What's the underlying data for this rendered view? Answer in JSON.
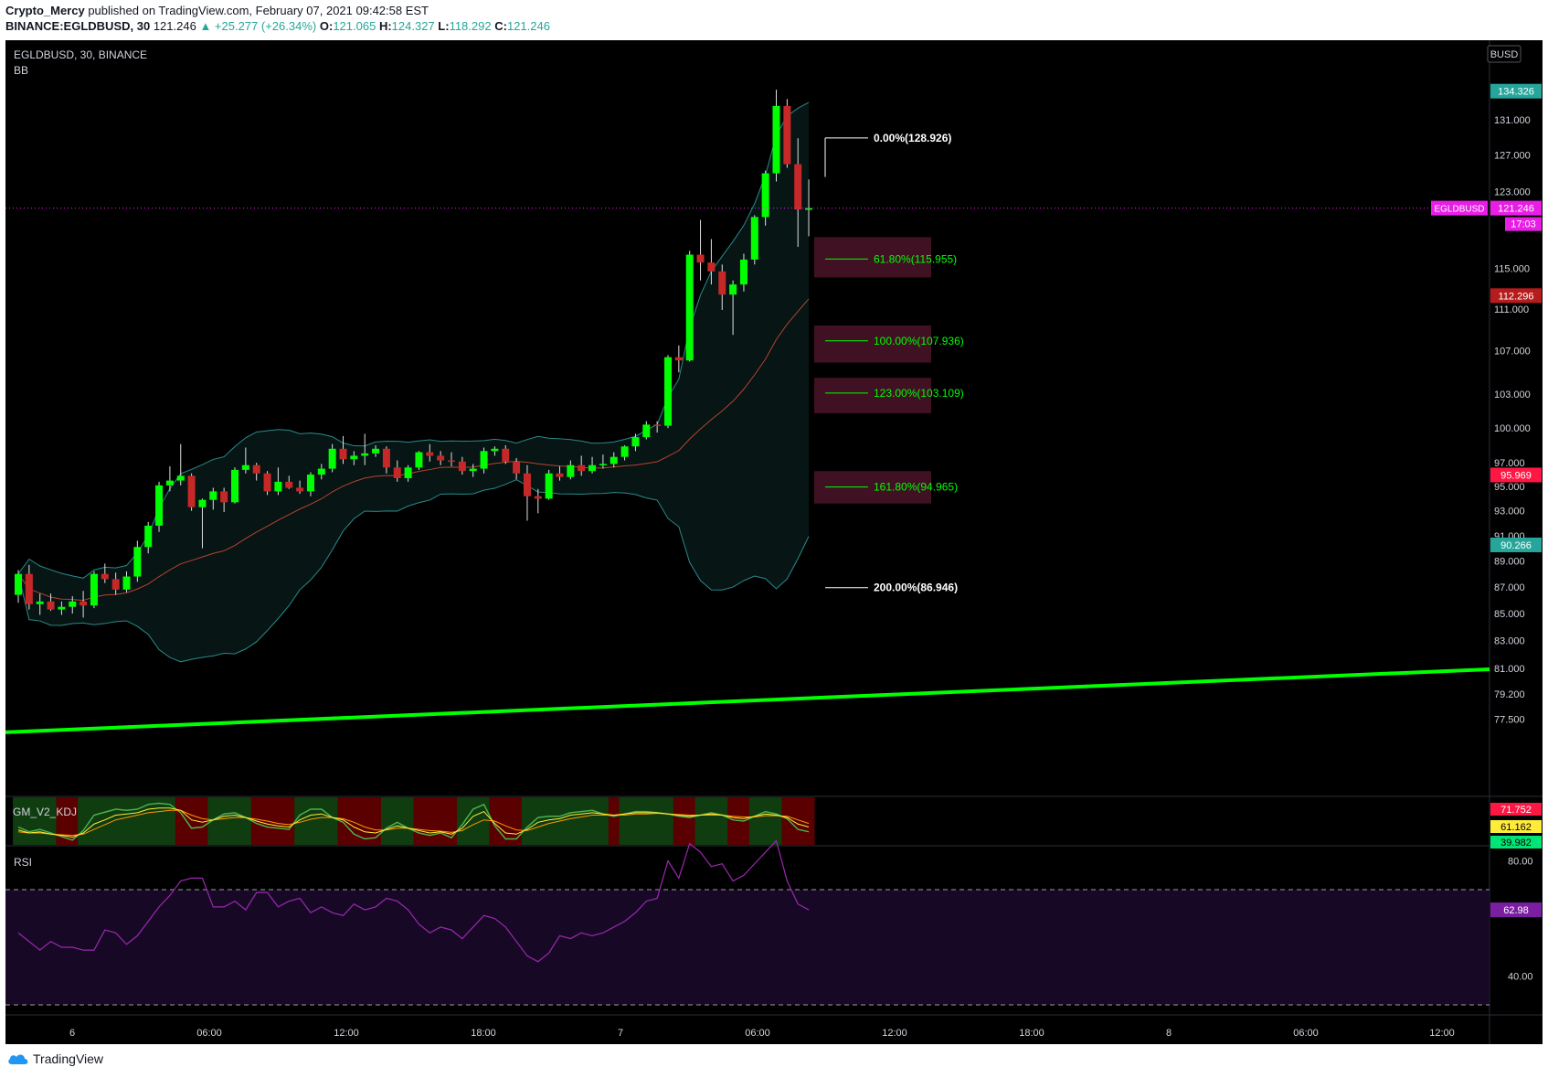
{
  "header": {
    "author": "Crypto_Mercy",
    "published_text": "published on TradingView.com, February 07, 2021 09:42:58 EST",
    "symbol_full": "BINANCE:EGLDBUSD, 30",
    "last": "121.246",
    "change": "▲ +25.277 (+26.34%)",
    "o_label": "O:",
    "o": "121.065",
    "h_label": "H:",
    "h": "124.327",
    "l_label": "L:",
    "l": "118.292",
    "c_label": "C:",
    "c": "121.246"
  },
  "legend": {
    "symbol": "EGLDBUSD, 30, BINANCE",
    "indicator": "BB",
    "kdj": "GM_V2_KDJ",
    "rsi": "RSI"
  },
  "currency_button": "BUSD",
  "footer": {
    "brand": "TradingView"
  },
  "colors": {
    "up": "#00ff00",
    "down": "#c62828",
    "bb_band": "#2a8a8a",
    "bb_basis": "#b5432f",
    "trend": "#00ff00",
    "rsi_line": "#9c27b0",
    "magenta": "#e91ee6",
    "axis_text": "#d1d4dc"
  },
  "chart_data": {
    "type": "candlestick",
    "symbol": "EGLDBUSD",
    "interval": "30",
    "price_axis": {
      "ticks": [
        "131.000",
        "127.000",
        "123.000",
        "115.000",
        "111.000",
        "107.000",
        "103.000",
        "100.000",
        "97.000",
        "95.000",
        "93.000",
        "91.000",
        "89.000",
        "87.000",
        "85.000",
        "83.000",
        "81.000",
        "79.200",
        "77.500"
      ],
      "scale": "log"
    },
    "time_axis": {
      "ticks": [
        "6",
        "06:00",
        "12:00",
        "18:00",
        "7",
        "06:00",
        "12:00",
        "18:00",
        "8",
        "06:00",
        "12:00"
      ]
    },
    "price_labels": [
      {
        "name": "bb_upper",
        "value": "134.326",
        "color": "#26a69a"
      },
      {
        "name": "last",
        "value": "121.246",
        "color": "#e91ee6",
        "symbol": "EGLDBUSD",
        "countdown": "17:03"
      },
      {
        "name": "bb_basis",
        "value": "112.296",
        "color": "#b71c1c"
      },
      {
        "name": "red_marker",
        "value": "95.969",
        "color": "#ff1744"
      },
      {
        "name": "bb_lower",
        "value": "90.266",
        "color": "#26a69a"
      }
    ],
    "fibonacci": [
      {
        "level": "0.00%",
        "price": "128.926"
      },
      {
        "level": "61.80%",
        "price": "115.955"
      },
      {
        "level": "100.00%",
        "price": "107.936"
      },
      {
        "level": "123.00%",
        "price": "103.109"
      },
      {
        "level": "161.80%",
        "price": "94.965"
      },
      {
        "level": "200.00%",
        "price": "86.946"
      }
    ],
    "candles": [
      [
        86.4,
        88.3,
        85.8,
        88.0
      ],
      [
        88.0,
        88.7,
        85.3,
        85.7
      ],
      [
        85.7,
        86.5,
        84.9,
        85.9
      ],
      [
        85.9,
        86.5,
        85.2,
        85.3
      ],
      [
        85.3,
        85.9,
        84.9,
        85.5
      ],
      [
        85.5,
        86.3,
        85.0,
        85.9
      ],
      [
        85.9,
        86.7,
        84.7,
        85.6
      ],
      [
        85.6,
        88.2,
        85.4,
        88.0
      ],
      [
        88.0,
        88.8,
        87.3,
        87.6
      ],
      [
        87.6,
        88.1,
        86.4,
        86.8
      ],
      [
        86.8,
        88.2,
        86.6,
        87.8
      ],
      [
        87.8,
        90.6,
        87.4,
        90.1
      ],
      [
        90.1,
        92.1,
        89.6,
        91.8
      ],
      [
        91.8,
        95.4,
        91.3,
        95.1
      ],
      [
        95.1,
        96.7,
        94.6,
        95.5
      ],
      [
        95.5,
        98.6,
        95.1,
        95.9
      ],
      [
        95.9,
        96.1,
        93.0,
        93.3
      ],
      [
        93.3,
        94.0,
        90.0,
        93.9
      ],
      [
        93.9,
        94.9,
        93.1,
        94.6
      ],
      [
        94.6,
        94.9,
        92.9,
        93.7
      ],
      [
        93.7,
        96.6,
        93.6,
        96.4
      ],
      [
        96.4,
        98.3,
        96.1,
        96.8
      ],
      [
        96.8,
        97.0,
        95.5,
        96.1
      ],
      [
        96.1,
        96.3,
        94.3,
        94.6
      ],
      [
        94.6,
        96.6,
        94.3,
        95.4
      ],
      [
        95.4,
        95.9,
        94.8,
        94.9
      ],
      [
        94.9,
        95.5,
        94.4,
        94.6
      ],
      [
        94.6,
        96.2,
        94.2,
        96.0
      ],
      [
        96.0,
        96.9,
        95.6,
        96.5
      ],
      [
        96.5,
        98.6,
        96.2,
        98.2
      ],
      [
        98.2,
        99.3,
        96.9,
        97.3
      ],
      [
        97.3,
        98.0,
        96.8,
        97.6
      ],
      [
        97.6,
        99.5,
        96.8,
        97.8
      ],
      [
        97.8,
        98.5,
        97.5,
        98.2
      ],
      [
        98.2,
        98.4,
        96.1,
        96.6
      ],
      [
        96.6,
        97.2,
        95.4,
        95.7
      ],
      [
        95.7,
        96.8,
        95.4,
        96.6
      ],
      [
        96.6,
        98.0,
        96.4,
        97.9
      ],
      [
        97.9,
        98.6,
        97.1,
        97.6
      ],
      [
        97.6,
        98.0,
        96.8,
        97.2
      ],
      [
        97.2,
        97.9,
        96.7,
        97.1
      ],
      [
        97.1,
        97.5,
        96.0,
        96.3
      ],
      [
        96.3,
        96.9,
        95.8,
        96.5
      ],
      [
        96.5,
        98.3,
        96.1,
        98.0
      ],
      [
        98.0,
        98.4,
        97.6,
        98.2
      ],
      [
        98.2,
        98.5,
        96.9,
        97.1
      ],
      [
        97.1,
        97.4,
        95.6,
        96.1
      ],
      [
        96.1,
        96.8,
        92.2,
        94.2
      ],
      [
        94.2,
        94.8,
        92.8,
        94.0
      ],
      [
        94.0,
        96.4,
        93.9,
        96.1
      ],
      [
        96.1,
        96.7,
        95.5,
        95.8
      ],
      [
        95.8,
        97.2,
        95.6,
        96.8
      ],
      [
        96.8,
        97.6,
        95.9,
        96.3
      ],
      [
        96.3,
        97.5,
        96.1,
        96.8
      ],
      [
        96.8,
        97.7,
        96.5,
        96.9
      ],
      [
        96.9,
        97.9,
        96.6,
        97.5
      ],
      [
        97.5,
        98.5,
        97.2,
        98.4
      ],
      [
        98.4,
        99.5,
        98.0,
        99.2
      ],
      [
        99.2,
        100.6,
        99.0,
        100.3
      ],
      [
        100.3,
        100.6,
        99.6,
        100.2
      ],
      [
        100.2,
        106.6,
        100.0,
        106.4
      ],
      [
        106.4,
        107.5,
        105.0,
        106.1
      ],
      [
        106.1,
        116.8,
        106.0,
        116.4
      ],
      [
        116.4,
        120.0,
        113.8,
        115.6
      ],
      [
        115.6,
        118.0,
        113.4,
        114.7
      ],
      [
        114.7,
        115.4,
        110.9,
        112.4
      ],
      [
        112.4,
        113.8,
        108.5,
        113.4
      ],
      [
        113.4,
        116.5,
        112.7,
        115.9
      ],
      [
        115.9,
        120.5,
        115.4,
        120.3
      ],
      [
        120.3,
        125.3,
        119.4,
        125.0
      ],
      [
        125.0,
        134.5,
        124.1,
        132.6
      ],
      [
        132.6,
        133.4,
        125.6,
        126.0
      ],
      [
        126.0,
        128.9,
        117.2,
        121.1
      ],
      [
        121.065,
        124.327,
        118.292,
        121.246
      ]
    ],
    "rsi": {
      "ticks": [
        "80.00",
        "40.00"
      ],
      "bands": [
        70,
        30
      ],
      "value": "62.98",
      "values": [
        55,
        52,
        49,
        52,
        50,
        50,
        49,
        49,
        56,
        55,
        51,
        54,
        59,
        64,
        68,
        73,
        74,
        74,
        64,
        64,
        66,
        63,
        69,
        69,
        64,
        66,
        67,
        62,
        64,
        62,
        61,
        65,
        63,
        64,
        67,
        66,
        63,
        58,
        55,
        57,
        56,
        53,
        57,
        61,
        60,
        57,
        52,
        47,
        45,
        48,
        54,
        53,
        55,
        54,
        55,
        57,
        59,
        62,
        66,
        67,
        80,
        74,
        86,
        83,
        78,
        79,
        73,
        75,
        79,
        83,
        87,
        73,
        65,
        63
      ]
    },
    "kdj": {
      "labels": [
        "71.752",
        "61.162",
        "39.982"
      ],
      "label_colors": [
        "#ff1744",
        "#ffeb3b",
        "#00e676"
      ],
      "k": [
        45,
        40,
        42,
        38,
        36,
        33,
        40,
        55,
        62,
        70,
        72,
        74,
        80,
        82,
        82,
        78,
        62,
        58,
        62,
        68,
        70,
        66,
        60,
        55,
        52,
        50,
        62,
        70,
        72,
        66,
        62,
        50,
        42,
        40,
        46,
        52,
        48,
        44,
        40,
        42,
        38,
        48,
        68,
        76,
        56,
        40,
        38,
        46,
        58,
        62,
        64,
        70,
        72,
        74,
        72,
        70,
        72,
        74,
        74,
        74,
        72,
        70,
        68,
        70,
        72,
        70,
        66,
        64,
        68,
        72,
        70,
        66,
        55,
        50
      ],
      "d": [
        42,
        40,
        40,
        38,
        37,
        36,
        38,
        46,
        54,
        62,
        66,
        70,
        74,
        76,
        78,
        78,
        70,
        64,
        62,
        64,
        66,
        66,
        63,
        60,
        56,
        54,
        58,
        63,
        66,
        66,
        64,
        58,
        50,
        45,
        45,
        48,
        48,
        46,
        44,
        43,
        41,
        44,
        54,
        62,
        60,
        52,
        45,
        44,
        50,
        56,
        60,
        64,
        67,
        70,
        70,
        70,
        70,
        72,
        72,
        73,
        72,
        71,
        70,
        70,
        70,
        70,
        68,
        67,
        67,
        69,
        69,
        68,
        62,
        56
      ],
      "j": [
        50,
        42,
        46,
        40,
        34,
        28,
        44,
        70,
        75,
        80,
        78,
        80,
        88,
        90,
        88,
        74,
        48,
        50,
        62,
        72,
        74,
        66,
        56,
        50,
        48,
        46,
        70,
        80,
        80,
        66,
        58,
        38,
        30,
        32,
        48,
        58,
        48,
        40,
        36,
        40,
        32,
        54,
        80,
        88,
        52,
        30,
        30,
        50,
        66,
        68,
        68,
        74,
        76,
        78,
        72,
        68,
        72,
        76,
        76,
        74,
        72,
        68,
        66,
        70,
        74,
        70,
        62,
        60,
        68,
        76,
        72,
        64,
        46,
        42
      ]
    }
  }
}
